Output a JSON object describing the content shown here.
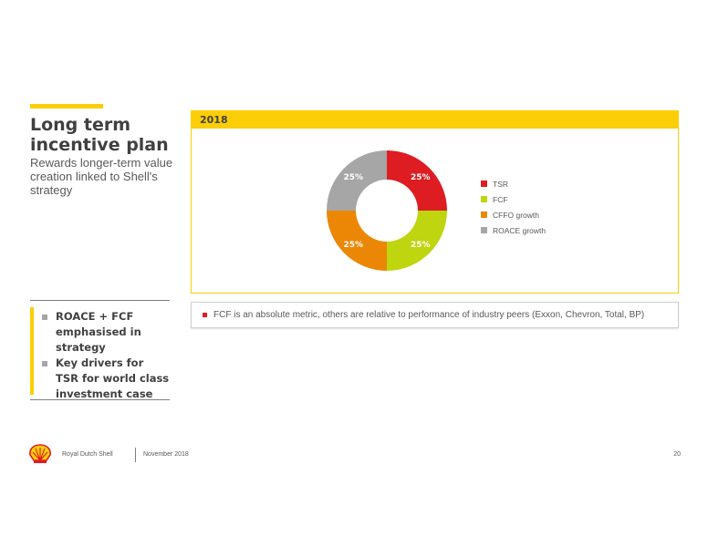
{
  "slide": {
    "title": "Long term incentive plan",
    "subtitle": "Rewards longer-term value creation linked to Shell's strategy"
  },
  "panel": {
    "heading": "2018"
  },
  "chart_data": {
    "type": "pie",
    "donut": true,
    "categories": [
      "TSR",
      "FCF",
      "CFFO growth",
      "ROACE growth"
    ],
    "values": [
      25,
      25,
      25,
      25
    ],
    "labels": [
      "25%",
      "25%",
      "25%",
      "25%"
    ],
    "colors": [
      "#DD1D21",
      "#BED50F",
      "#EB8705",
      "#A6A6A6"
    ],
    "legend": "right"
  },
  "note": {
    "text": "FCF is an absolute metric, others are relative to performance of industry peers (Exxon, Chevron, Total, BP)",
    "bullet_color": "#DD1D21"
  },
  "key_points": [
    {
      "text": "ROACE + FCF emphasised in strategy"
    },
    {
      "text": "Key drivers for TSR for world class investment case"
    }
  ],
  "footer": {
    "company": "Royal Dutch Shell",
    "date": "November 2018",
    "page": "20"
  },
  "brand": {
    "accent": "#FBCE07",
    "logo": "shell-pecten-icon"
  }
}
